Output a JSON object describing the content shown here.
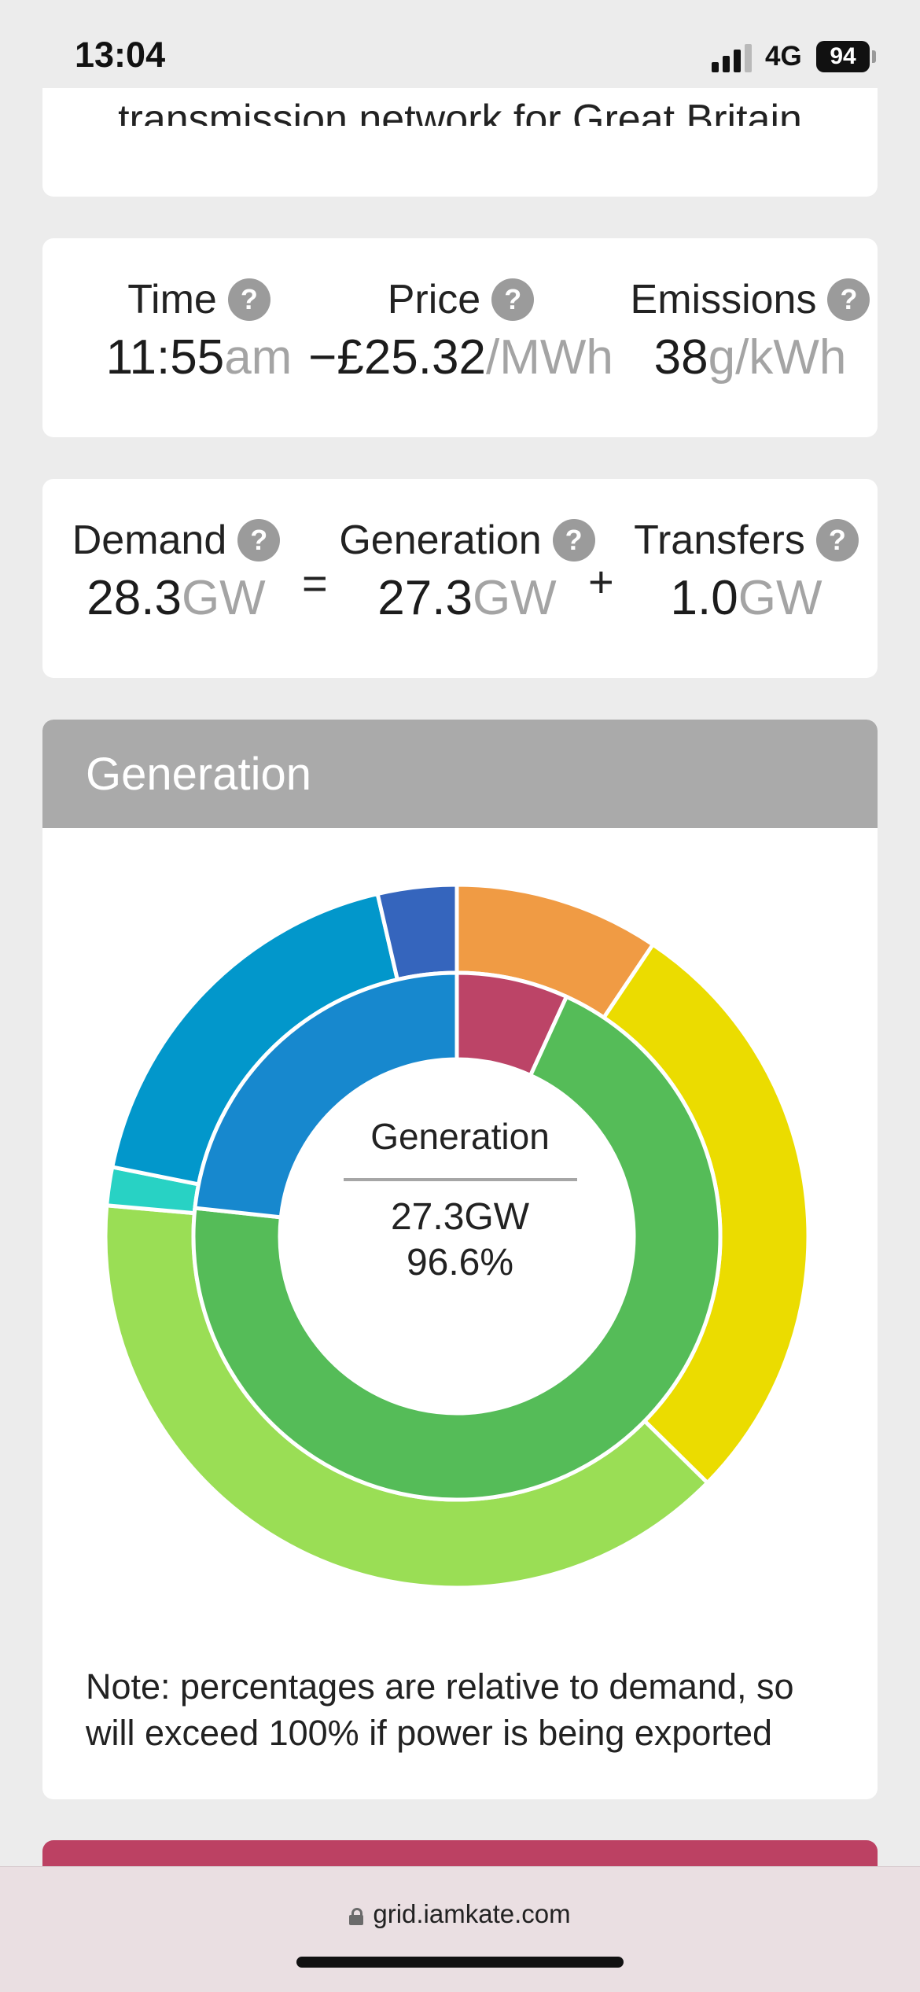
{
  "status": {
    "time": "13:04",
    "network": "4G",
    "battery": "94",
    "signal_bars": 3,
    "signal_bars_total": 4
  },
  "intro": {
    "text": "transmission network for Great Britain"
  },
  "summary": {
    "time": {
      "label": "Time",
      "value": "11:55",
      "unit": "am"
    },
    "price": {
      "label": "Price",
      "value": "−£25.32",
      "unit": "/MWh"
    },
    "emissions": {
      "label": "Emissions",
      "value": "38",
      "unit": "g/kWh"
    }
  },
  "balance": {
    "demand": {
      "label": "Demand",
      "value": "28.3",
      "unit": "GW"
    },
    "equals": "=",
    "generation": {
      "label": "Generation",
      "value": "27.3",
      "unit": "GW"
    },
    "plus": "+",
    "transfers": {
      "label": "Transfers",
      "value": "1.0",
      "unit": "GW"
    }
  },
  "help_glyph": "?",
  "generation_section": {
    "title": "Generation",
    "center": {
      "title": "Generation",
      "value": "27.3GW",
      "percent": "96.6%"
    },
    "note": "Note: percentages are relative to demand, so will exceed 100% if power is being exported"
  },
  "chart_data": {
    "type": "pie",
    "subtype": "nested donut",
    "note": "slice values estimated as percentages of demand from slice angles; categories are not labelled in the image",
    "inner_ring": [
      {
        "value": 6.6,
        "color": "#bc4467"
      },
      {
        "value": 67.5,
        "color": "#55bc58"
      },
      {
        "value": 22.5,
        "color": "#1788ce"
      }
    ],
    "outer_ring": [
      {
        "value": 9.1,
        "color": "#f09b44"
      },
      {
        "value": 27.0,
        "color": "#ebdc00"
      },
      {
        "value": 37.7,
        "color": "#9ade55"
      },
      {
        "value": 1.7,
        "color": "#28d2c4"
      },
      {
        "value": 17.6,
        "color": "#0297cb"
      },
      {
        "value": 3.5,
        "color": "#3565bd"
      }
    ]
  },
  "url": "grid.iamkate.com"
}
